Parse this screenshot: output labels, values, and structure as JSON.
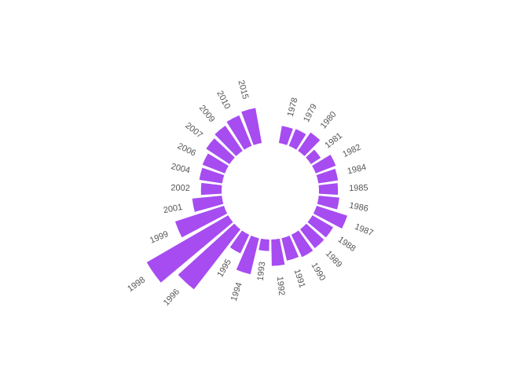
{
  "chart_data": {
    "type": "bar",
    "layout": "radial",
    "color": "#a64cf0",
    "categories": [
      "1978",
      "1979",
      "1980",
      "1981",
      "1982",
      "1984",
      "1985",
      "1986",
      "1987",
      "1988",
      "1989",
      "1990",
      "1991",
      "1992",
      "1993",
      "1994",
      "1995",
      "1996",
      "1998",
      "1999",
      "2001",
      "2002",
      "2004",
      "2006",
      "2007",
      "2009",
      "2010",
      "2015"
    ],
    "values": [
      21,
      22,
      27,
      14,
      26,
      24,
      23,
      25,
      39,
      29,
      29,
      30,
      28,
      32,
      14,
      45,
      25,
      92,
      114,
      62,
      36,
      25,
      28,
      29,
      34,
      37,
      40,
      43
    ]
  }
}
